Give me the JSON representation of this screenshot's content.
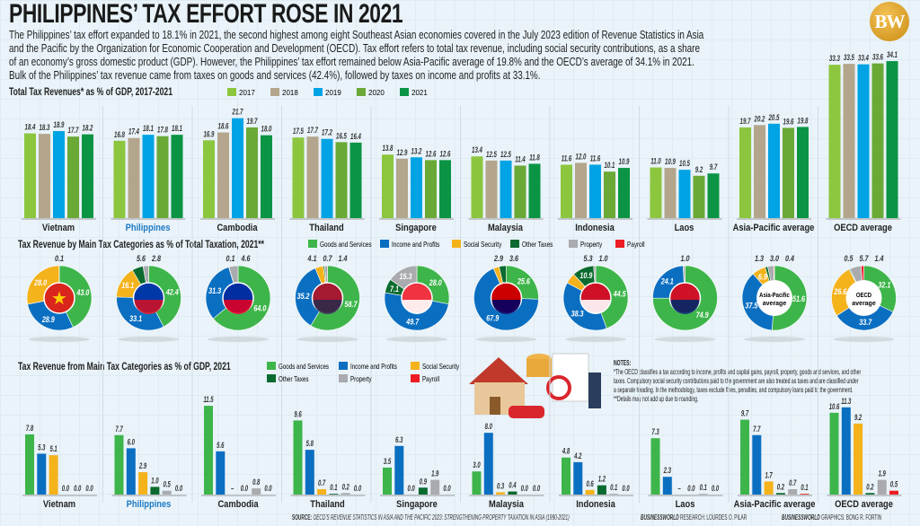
{
  "title": "PHILIPPINES’ TAX EFFORT ROSE IN 2021",
  "paragraph": [
    "The Philippines’ tax effort expanded to 18.1% in 2021, the second highest among eight Southeast Asian economies covered in the July 2023 edition of Revenue Statistics in Asia",
    "and the Pacific by the Organization for Economic Cooperation and Development (OECD). Tax effort refers to total tax revenue, including social security contributions, as a share",
    "of an economy’s gross domestic product (GDP). However, the Philippines’ tax effort remained below Asia-Pacific average of 19.8% and the OECD’s average of 34.1% in 2021.",
    "Bulk of the Philippines’ tax revenue came from taxes on goods and services (42.4%), followed by taxes on income and profits at 33.1%."
  ],
  "logo": "BW",
  "colors": {
    "years": [
      "#8cc63f",
      "#b3a68c",
      "#00a3e4",
      "#6aa936",
      "#0a9444"
    ],
    "categories": [
      "#3db54a",
      "#0b6fc1",
      "#f4b21b",
      "#0b6a2f",
      "#a9abae",
      "#ed1c24"
    ],
    "highlight_label": "#1f7ac4"
  },
  "chart_data": [
    {
      "type": "bar",
      "title": "Total Tax Revenues* as % of GDP, 2017-2021",
      "legend": [
        "2017",
        "2018",
        "2019",
        "2020",
        "2021"
      ],
      "legend_placement": "top",
      "categories": [
        "Vietnam",
        "Philippines",
        "Cambodia",
        "Thailand",
        "Singapore",
        "Malaysia",
        "Indonesia",
        "Laos",
        "Asia-Pacific average",
        "OECD average"
      ],
      "series": [
        {
          "name": "2017",
          "values": [
            18.4,
            16.8,
            16.9,
            17.5,
            13.8,
            13.4,
            11.6,
            11.0,
            19.7,
            33.3
          ]
        },
        {
          "name": "2018",
          "values": [
            18.3,
            17.4,
            18.6,
            17.7,
            12.9,
            12.5,
            12.0,
            10.9,
            20.2,
            33.5
          ]
        },
        {
          "name": "2019",
          "values": [
            18.9,
            18.1,
            21.7,
            17.2,
            13.2,
            12.5,
            11.6,
            10.5,
            20.5,
            33.4
          ]
        },
        {
          "name": "2020",
          "values": [
            17.7,
            17.8,
            19.7,
            16.5,
            12.6,
            11.4,
            10.1,
            9.2,
            19.6,
            33.6
          ]
        },
        {
          "name": "2021",
          "values": [
            18.2,
            18.1,
            18.0,
            16.4,
            12.6,
            11.8,
            10.9,
            9.7,
            19.8,
            34.1
          ]
        }
      ],
      "labels": [
        [
          "18.4",
          "18.3",
          "18.9",
          "17.7",
          "18.2"
        ],
        [
          "16.8",
          "17.4",
          "18.1",
          "17.8",
          "18.1"
        ],
        [
          "16.9",
          "18.6",
          "21.7",
          "19.7",
          "18.0"
        ],
        [
          "17.5",
          "17.7",
          "17.2",
          "16.5",
          "16.4"
        ],
        [
          "13.8",
          "12.9",
          "13.2",
          "12.6",
          "12.6"
        ],
        [
          "13.4",
          "12.5",
          "12.5",
          "11.4",
          "11.8"
        ],
        [
          "11.6",
          "12.0",
          "11.6",
          "10.1",
          "10.9"
        ],
        [
          "11.0",
          "10.9",
          "10.5",
          "9.2",
          "9.7"
        ],
        [
          "19.7",
          "20.2",
          "20.5",
          "19.6",
          "19.8"
        ],
        [
          "33.3",
          "33.5",
          "33.4",
          "33.6",
          "34.1"
        ]
      ],
      "ylim": [
        0,
        35
      ]
    },
    {
      "type": "pie",
      "title": "Tax Revenue by Main Tax Categories as % of Total Taxation, 2021**",
      "legend": [
        "Goods and Services",
        "Income and Profits",
        "Social Security",
        "Other Taxes",
        "Property",
        "Payroll"
      ],
      "legend_placement": "top",
      "categories": [
        "Vietnam",
        "Philippines",
        "Cambodia",
        "Thailand",
        "Singapore",
        "Malaysia",
        "Indonesia",
        "Laos",
        "Asia-Pacific average",
        "OECD average"
      ],
      "center_labels": [
        "",
        "",
        "",
        "",
        "",
        "",
        "",
        "",
        "Asia-Pacific average",
        "OECD average"
      ],
      "values": [
        [
          43.0,
          28.9,
          28.0,
          0,
          0.1,
          0
        ],
        [
          42.4,
          33.1,
          16.1,
          5.6,
          2.8,
          0
        ],
        [
          64.0,
          31.3,
          0,
          0.1,
          4.6,
          0
        ],
        [
          58.7,
          35.2,
          4.1,
          0.7,
          1.4,
          0
        ],
        [
          28.0,
          49.7,
          0,
          7.1,
          15.3,
          0
        ],
        [
          25.6,
          67.9,
          2.9,
          3.6,
          0,
          0
        ],
        [
          44.5,
          38.3,
          5.3,
          10.9,
          1.0,
          0
        ],
        [
          74.9,
          24.1,
          0,
          0,
          1.0,
          0
        ],
        [
          51.6,
          37.5,
          6.9,
          1.3,
          3.0,
          0.4
        ],
        [
          32.1,
          33.7,
          26.6,
          0.5,
          5.7,
          1.4
        ]
      ],
      "labels": [
        [
          "43.0",
          "28.9",
          "28.0",
          "",
          "0.1",
          ""
        ],
        [
          "42.4",
          "33.1",
          "16.1",
          "5.6",
          "2.8",
          ""
        ],
        [
          "64.0",
          "31.3",
          "",
          "0.1",
          "4.6",
          ""
        ],
        [
          "58.7",
          "35.2",
          "4.1",
          "0.7",
          "1.4",
          ""
        ],
        [
          "28.0",
          "49.7",
          "",
          "7.1",
          "15.3",
          ""
        ],
        [
          "25.6",
          "67.9",
          "2.9",
          "3.6",
          "",
          ""
        ],
        [
          "44.5",
          "38.3",
          "5.3",
          "10.9",
          "1.0",
          ""
        ],
        [
          "74.9",
          "24.1",
          "",
          "",
          "1.0",
          ""
        ],
        [
          "51.6",
          "37.5",
          "6.9",
          "1.3",
          "3.0",
          "0.4"
        ],
        [
          "32.1",
          "33.7",
          "26.6",
          "0.5",
          "5.7",
          "1.4"
        ]
      ]
    },
    {
      "type": "bar",
      "title": "Tax Revenue from Main Tax Categories as % of GDP, 2021",
      "legend": [
        "Goods and Services",
        "Income and Profits",
        "Social Security",
        "Other Taxes",
        "Property",
        "Payroll"
      ],
      "legend_placement": "top",
      "categories": [
        "Vietnam",
        "Philippines",
        "Cambodia",
        "Thailand",
        "Singapore",
        "Malaysia",
        "Indonesia",
        "Laos",
        "Asia-Pacific average",
        "OECD average"
      ],
      "values": [
        [
          7.8,
          5.3,
          5.1,
          0.0,
          0.0,
          0.0
        ],
        [
          7.7,
          6.0,
          2.9,
          1.0,
          0.5,
          0.0
        ],
        [
          11.5,
          5.6,
          null,
          0.0,
          0.8,
          0.0
        ],
        [
          9.6,
          5.8,
          0.7,
          0.1,
          0.2,
          0.0
        ],
        [
          3.5,
          6.3,
          0.0,
          0.9,
          1.9,
          0.0
        ],
        [
          3.0,
          8.0,
          0.3,
          0.4,
          0.0,
          0.0
        ],
        [
          4.8,
          4.2,
          0.6,
          1.2,
          0.1,
          0.0
        ],
        [
          7.3,
          2.3,
          null,
          0.0,
          0.1,
          0.0
        ],
        [
          9.7,
          7.7,
          1.7,
          0.2,
          0.7,
          0.1
        ],
        [
          10.6,
          11.3,
          9.2,
          0.2,
          1.9,
          0.5
        ]
      ],
      "labels": [
        [
          "7.8",
          "5.3",
          "5.1",
          "0.0",
          "0.0",
          "0.0"
        ],
        [
          "7.7",
          "6.0",
          "2.9",
          "1.0",
          "0.5",
          "0.0"
        ],
        [
          "11.5",
          "5.6",
          "–",
          "0.0",
          "0.8",
          "0.0"
        ],
        [
          "9.6",
          "5.8",
          "0.7",
          "0.1",
          "0.2",
          "0.0"
        ],
        [
          "3.5",
          "6.3",
          "0.0",
          "0.9",
          "1.9",
          "0.0"
        ],
        [
          "3.0",
          "8.0",
          "0.3",
          "0.4",
          "0.0",
          "0.0"
        ],
        [
          "4.8",
          "4.2",
          "0.6",
          "1.2",
          "0.1",
          "0.0"
        ],
        [
          "7.3",
          "2.3",
          "–",
          "0.0",
          "0.1",
          "0.0"
        ],
        [
          "9.7",
          "7.7",
          "1.7",
          "0.2",
          "0.7",
          "0.1"
        ],
        [
          "10.6",
          "11.3",
          "9.2",
          "0.2",
          "1.9",
          "0.5"
        ]
      ],
      "ylim": [
        0,
        12
      ]
    }
  ],
  "highlight_category": "Philippines",
  "notes": {
    "heading": "NOTES:",
    "lines": [
      "*The OECD classifies a tax according to income, profits and capital gains, payroll, property, goods and services, and other",
      "taxes. Compulsory social security contributions paid to the government are also treated as taxes and are classified under",
      "a separate heading. In the methodology, taxes exclude fines, penalties, and compulsory loans paid to the government.",
      "**Details may not add up due to rounding."
    ]
  },
  "footer": {
    "source_label": "SOURCE:",
    "source_text": "OECD’S REVENUE STATISTICS IN ASIA AND THE PACIFIC 2023: STRENGTHENING PROPERTY TAXATION IN ASIA (1990-2021)",
    "research_label": "BUSINESSWORLD",
    "research_text": "RESEARCH: LOURDES O. PILAR",
    "graphics_label": "BUSINESSWORLD",
    "graphics_text": "GRAPHICS: BONG R. FORTIN"
  },
  "icons": {
    "illustration": "house-car-coins-tax-document-illustration",
    "flags": [
      "vietnam-flag",
      "philippines-flag",
      "cambodia-flag",
      "thailand-flag",
      "singapore-flag",
      "malaysia-flag",
      "indonesia-flag",
      "laos-flag"
    ]
  }
}
